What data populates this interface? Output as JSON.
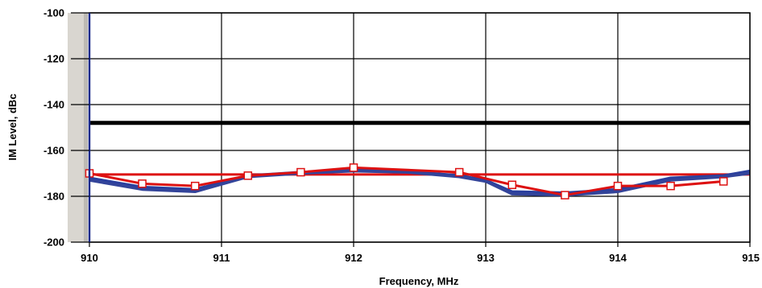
{
  "chart_data": {
    "type": "line",
    "title": "",
    "xlabel": "Frequency, MHz",
    "ylabel": "IM Level, dBc",
    "xlim": [
      910,
      915
    ],
    "ylim": [
      -200,
      -100
    ],
    "x_ticks": [
      910,
      911,
      912,
      913,
      914,
      915
    ],
    "y_ticks": [
      -100,
      -120,
      -140,
      -160,
      -180,
      -200
    ],
    "x_tick_labels": [
      "910",
      "911",
      "912",
      "913",
      "914",
      "915"
    ],
    "y_tick_labels": [
      "-100",
      "-120",
      "-140",
      "-160",
      "-180",
      "-200"
    ],
    "grid": true,
    "legend": "none",
    "reference_lines": [
      {
        "y": -148,
        "color": "#000000"
      },
      {
        "y": -170.5,
        "color": "#dd1111"
      }
    ],
    "series": [
      {
        "color": "#2a3f9e",
        "marker": "none",
        "x": [
          910,
          910.4,
          910.8,
          911.2,
          911.6,
          912,
          912.4,
          912.8,
          913,
          913.2,
          913.6,
          914,
          914.4,
          914.8,
          915
        ],
        "y": [
          -172,
          -176,
          -177,
          -171,
          -169.5,
          -168.5,
          -169,
          -171,
          -173,
          -178,
          -178.5,
          -177,
          -172,
          -171,
          -169
        ]
      },
      {
        "color": "#33449a",
        "marker": "none",
        "x": [
          910,
          910.4,
          910.8,
          911.2,
          911.6,
          912,
          912.4,
          912.8,
          913,
          913.2,
          913.6,
          914,
          914.4,
          914.8,
          915
        ],
        "y": [
          -173,
          -177,
          -178,
          -171.5,
          -170,
          -169,
          -169.5,
          -171.5,
          -173.5,
          -179,
          -179.5,
          -178,
          -173,
          -171.5,
          -170
        ]
      },
      {
        "color": "#dd1111",
        "marker": "square",
        "x": [
          910,
          910.4,
          910.8,
          911.2,
          911.6,
          912,
          912.8,
          913.2,
          913.6,
          914,
          914.4,
          914.8
        ],
        "y": [
          -170,
          -174.5,
          -175.5,
          -171,
          -169.5,
          -167.5,
          -169.5,
          -175,
          -179.5,
          -175.5,
          -175.5,
          -173.5
        ]
      }
    ]
  }
}
